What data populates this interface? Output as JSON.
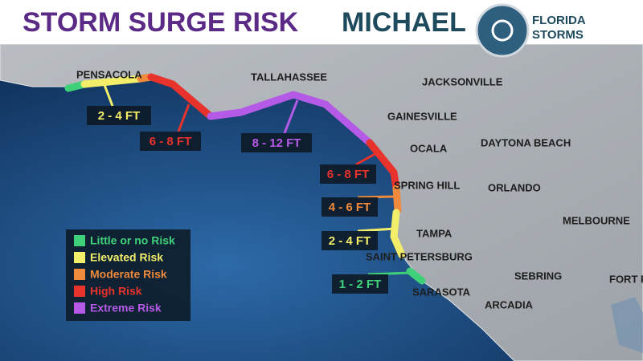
{
  "header": {
    "title": "STORM SURGE RISK",
    "storm": "MICHAEL",
    "logo": {
      "line1": "FLORIDA",
      "line2": "STORMS"
    }
  },
  "cities": [
    "PENSACOLA",
    "TALLAHASSEE",
    "JACKSONVILLE",
    "GAINESVILLE",
    "OCALA",
    "DAYTONA BEACH",
    "SPRING HILL",
    "ORLANDO",
    "MELBOURNE",
    "TAMPA",
    "SAINT PETERSBURG",
    "SEBRING",
    "FORT PI",
    "SARASOTA",
    "ARCADIA"
  ],
  "surge_labels": [
    {
      "text": "2 - 4 FT",
      "color": "#f2ee6a"
    },
    {
      "text": "6 - 8 FT",
      "color": "#e8322c"
    },
    {
      "text": "8 - 12 FT",
      "color": "#b45ae6"
    },
    {
      "text": "6 - 8 FT",
      "color": "#e8322c"
    },
    {
      "text": "4 - 6 FT",
      "color": "#ef8a3c"
    },
    {
      "text": "2 - 4 FT",
      "color": "#f2ee6a"
    },
    {
      "text": "1 - 2 FT",
      "color": "#3fd07a"
    }
  ],
  "legend": [
    {
      "label": "Little or no Risk",
      "color": "#3fd07a"
    },
    {
      "label": "Elevated Risk",
      "color": "#f2ee6a"
    },
    {
      "label": "Moderate Risk",
      "color": "#ef8a3c"
    },
    {
      "label": "High Risk",
      "color": "#e8322c"
    },
    {
      "label": "Extreme Risk",
      "color": "#b45ae6"
    }
  ]
}
